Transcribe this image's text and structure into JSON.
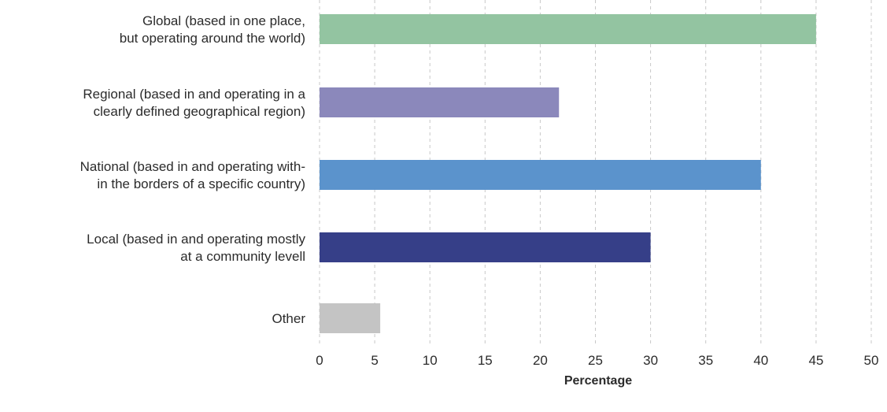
{
  "chart_data": {
    "type": "bar",
    "orientation": "horizontal",
    "categories": [
      [
        "Global (based in one place,",
        "but operating around the world)"
      ],
      [
        "Regional (based in and operating in a",
        "clearly defined geographical region)"
      ],
      [
        "National (based in and operating with-",
        "in the borders of a specific country)"
      ],
      [
        "Local (based in and operating mostly",
        "at a community levell"
      ],
      [
        "Other"
      ]
    ],
    "values": [
      45,
      21.7,
      40,
      30,
      5.5
    ],
    "colors": [
      "#93c4a1",
      "#8b88bb",
      "#5b93cc",
      "#363f88",
      "#c4c4c4"
    ],
    "xlabel": "Percentage",
    "ylabel": "",
    "xlim": [
      0,
      50
    ],
    "xticks": [
      "0",
      "5",
      "10",
      "15",
      "20",
      "25",
      "30",
      "35",
      "40",
      "45",
      "50"
    ],
    "grid": "vertical-dashed",
    "legend": "none"
  }
}
